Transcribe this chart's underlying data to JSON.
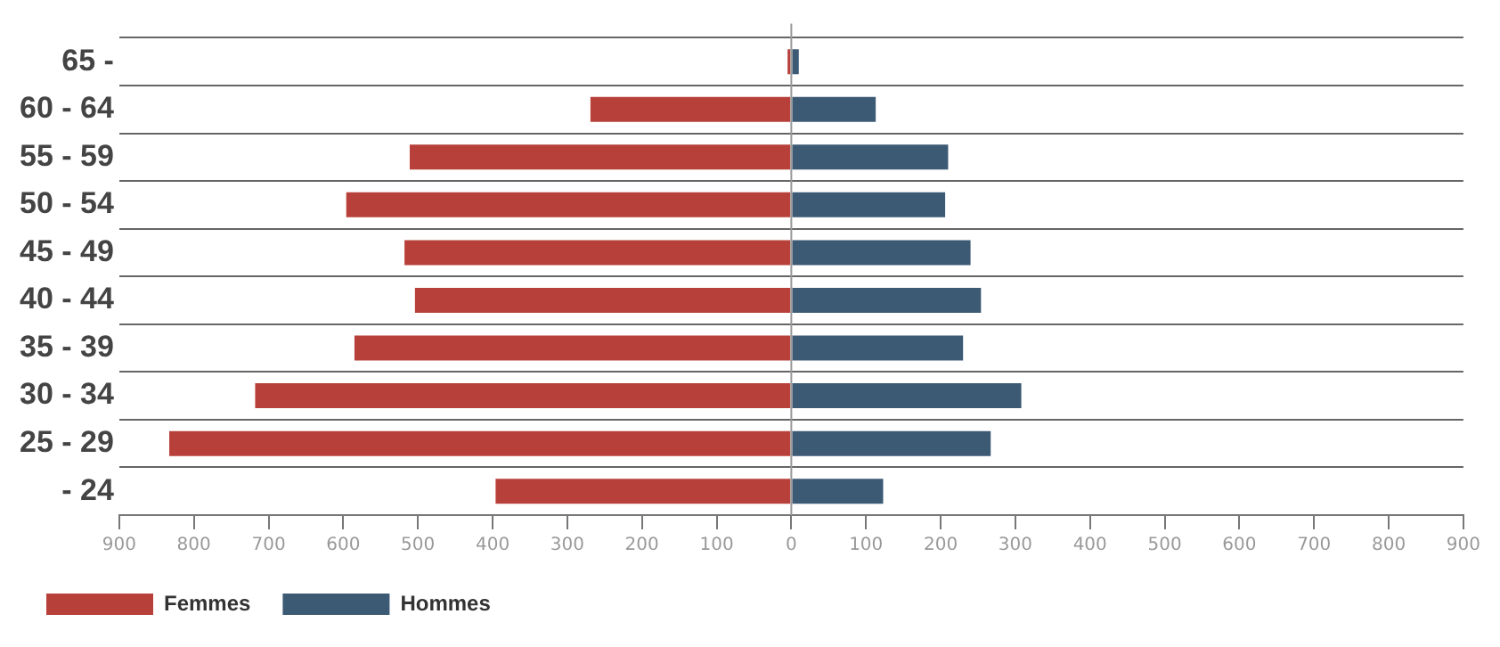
{
  "chart_data": {
    "type": "bar",
    "orientation": "horizontal",
    "stacked": true,
    "categories": [
      "65 -",
      "60 - 64",
      "55 - 59",
      "50 - 54",
      "45 - 49",
      "40 - 44",
      "35 - 39",
      "30 - 34",
      "25 - 29",
      "- 24"
    ],
    "series": [
      {
        "name": "Femmes",
        "color": "#b8403a",
        "values": [
          -5,
          -269,
          -511,
          -596,
          -518,
          -504,
          -585,
          -718,
          -833,
          -396
        ]
      },
      {
        "name": "Hommes",
        "color": "#3d5a75",
        "values": [
          10,
          113,
          210,
          206,
          240,
          254,
          230,
          308,
          267,
          123
        ]
      }
    ],
    "xlim": [
      -900,
      900
    ],
    "xticks": [
      {
        "value": -900,
        "label": "900"
      },
      {
        "value": -800,
        "label": "800"
      },
      {
        "value": -700,
        "label": "700"
      },
      {
        "value": -600,
        "label": "600"
      },
      {
        "value": -500,
        "label": "500"
      },
      {
        "value": -400,
        "label": "400"
      },
      {
        "value": -300,
        "label": "300"
      },
      {
        "value": -200,
        "label": "200"
      },
      {
        "value": -100,
        "label": "100"
      },
      0,
      100,
      200,
      300,
      400,
      500,
      600,
      700,
      800,
      900
    ],
    "ref_lines": [
      {
        "axis": "x",
        "value": 0,
        "color": "#999999"
      }
    ],
    "grid": "y",
    "legend": "bottom"
  }
}
